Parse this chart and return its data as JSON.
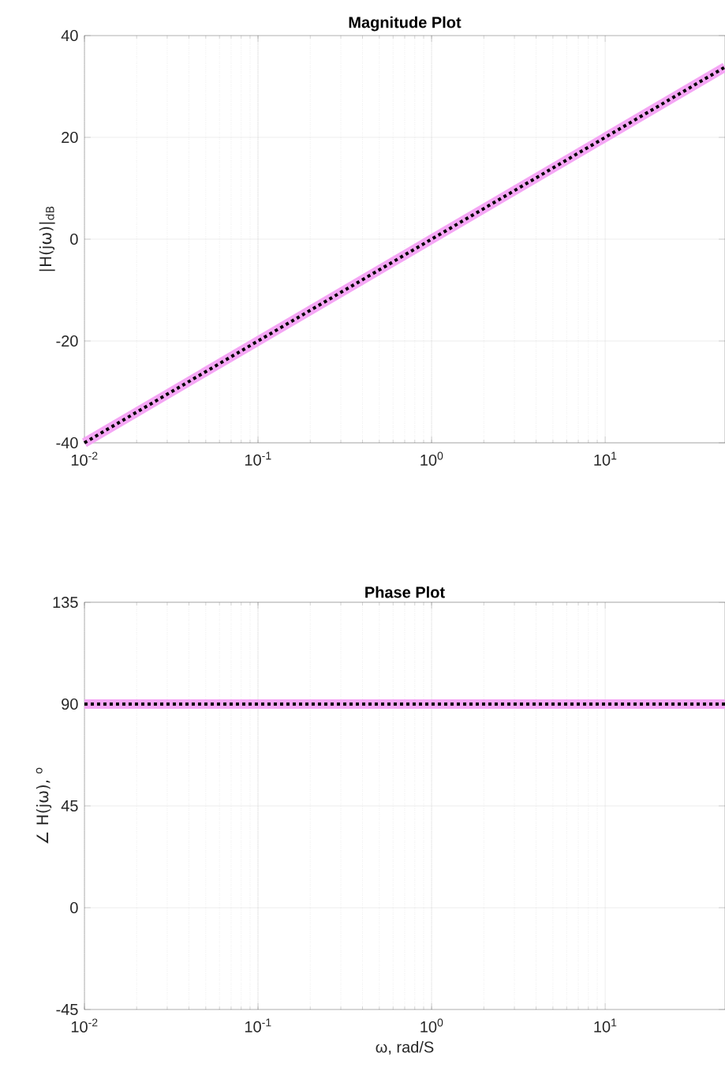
{
  "chart_data": [
    {
      "type": "line",
      "title": "Magnitude Plot",
      "ylabel": "|H(jω)|$_{dB}$",
      "log": "x",
      "grid": true,
      "marker": "none",
      "x": [
        0.01,
        0.1,
        1,
        10,
        49
      ],
      "series": [
        {
          "color": "#f5a6f5",
          "line_style": "solid",
          "values": [
            -40,
            -20,
            0,
            20,
            33.8
          ]
        },
        {
          "color": "#000000",
          "line_style": "dotted",
          "values": [
            -40,
            -20,
            0,
            20,
            33.8
          ]
        }
      ],
      "xlim": [
        0.01,
        49
      ],
      "ylim": [
        -40,
        40
      ],
      "xticks": [
        {
          "value": 0.01,
          "label": "10$^{-2}$"
        },
        {
          "value": 0.1,
          "label": "10$^{-1}$"
        },
        {
          "value": 1,
          "label": "10$^{0}$"
        },
        {
          "value": 10,
          "label": "10$^{1}$"
        }
      ],
      "yticks": [
        -40,
        -20,
        0,
        20,
        40
      ]
    },
    {
      "type": "line",
      "title": "Phase Plot",
      "ylabel": "∠ H(jω), $^{o}$",
      "xlabel": "ω, rad/S",
      "log": "x",
      "grid": true,
      "marker": "none",
      "x": [
        0.01,
        49
      ],
      "series": [
        {
          "color": "#f5a6f5",
          "line_style": "solid",
          "values": [
            90,
            90
          ]
        },
        {
          "color": "#000000",
          "line_style": "dotted",
          "values": [
            90,
            90
          ]
        }
      ],
      "xlim": [
        0.01,
        49
      ],
      "ylim": [
        -45,
        135
      ],
      "xticks": [
        {
          "value": 0.01,
          "label": "10$^{-2}$"
        },
        {
          "value": 0.1,
          "label": "10$^{-1}$"
        },
        {
          "value": 1,
          "label": "10$^{0}$"
        },
        {
          "value": 10,
          "label": "10$^{1}$"
        }
      ],
      "yticks": [
        -45,
        0,
        45,
        90,
        135
      ]
    }
  ]
}
